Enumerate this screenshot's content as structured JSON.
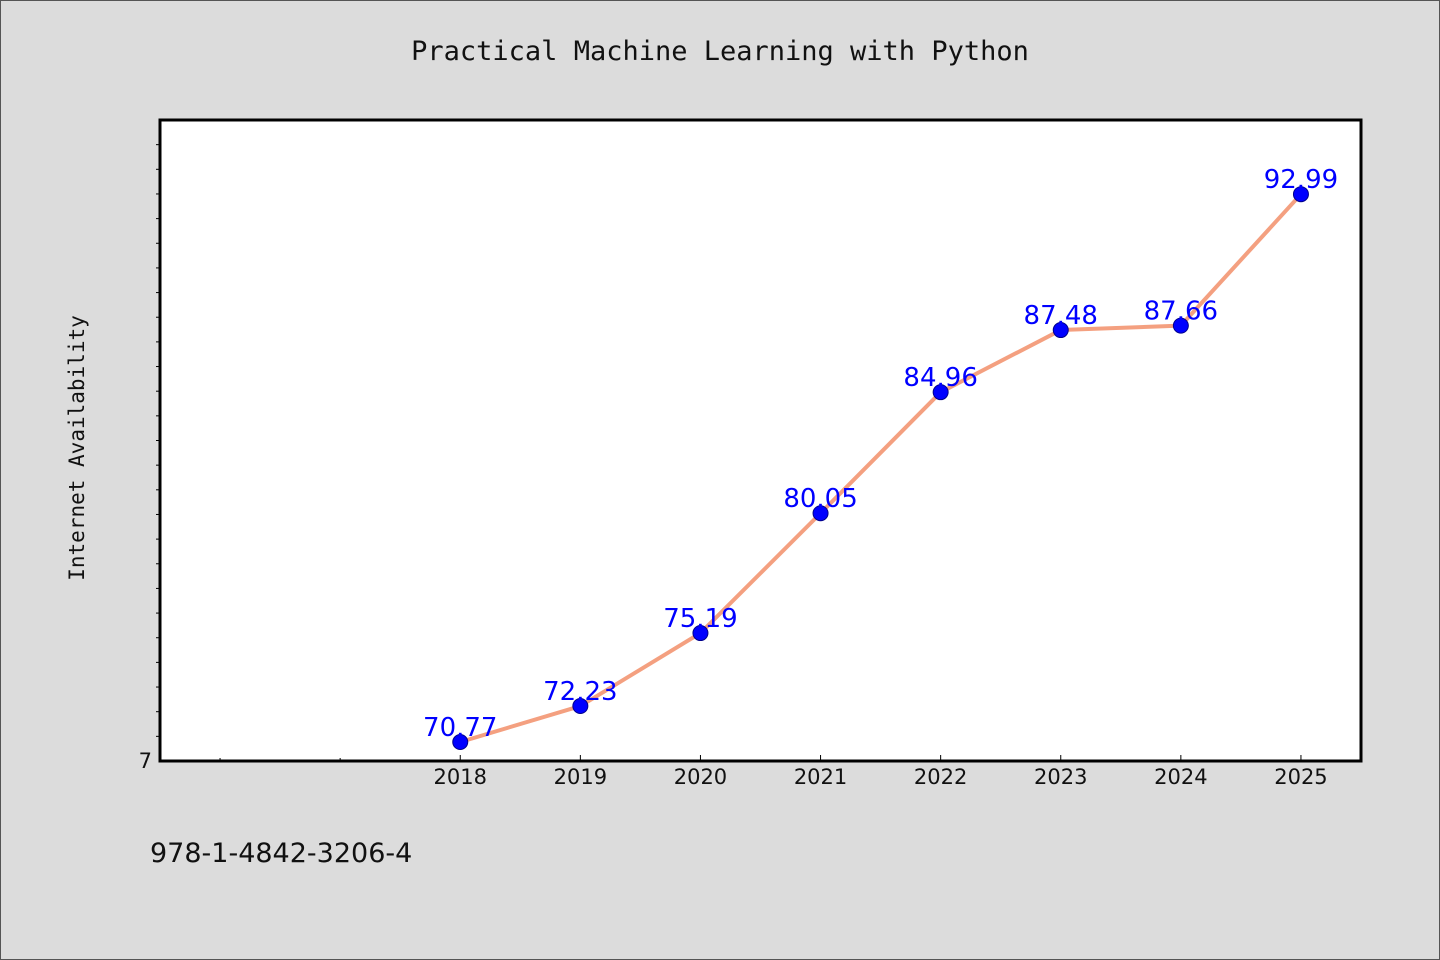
{
  "chart_data": {
    "type": "line",
    "title": "Practical Machine Learning with Python",
    "xlabel": "",
    "ylabel": "Internet Availability",
    "categories": [
      "2018",
      "2019",
      "2020",
      "2021",
      "2022",
      "2023",
      "2024",
      "2025"
    ],
    "x_axis_slots": 10,
    "series": [
      {
        "values": [
          70.77,
          72.23,
          75.19,
          80.05,
          84.96,
          87.48,
          87.66,
          92.99
        ]
      }
    ],
    "ylim": [
      70,
      96
    ],
    "y_tick_labels": [
      {
        "value": 70,
        "label": "7"
      }
    ],
    "y_minor_step": 1,
    "grid": false,
    "legend": "none",
    "colors": {
      "line": "#f4a080",
      "marker": "#0000ff",
      "data_label": "#0000ff",
      "plot_background": "#ffffff",
      "figure_background": "#dcdcdc"
    }
  },
  "footer": {
    "isbn": "978-1-4842-3206-4"
  }
}
